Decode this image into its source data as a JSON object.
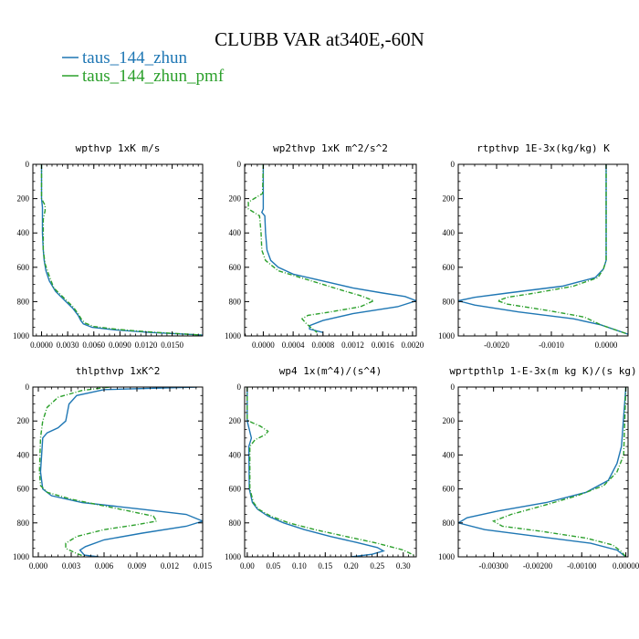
{
  "figure": {
    "title": "CLUBB VAR at340E,-60N",
    "legend": [
      {
        "label": "taus_144_zhun",
        "color": "#1f77b4",
        "dash": "solid"
      },
      {
        "label": "taus_144_zhun_pmf",
        "color": "#2ca02c",
        "dash": "dashdot"
      }
    ]
  },
  "chart_data": [
    {
      "type": "line",
      "title": "wpthvp  1xK m/s",
      "xlim": [
        -0.001,
        0.0185
      ],
      "ylim": [
        1000,
        0
      ],
      "xticks": [
        "0.0000",
        "0.0030",
        "0.0060",
        "0.0090",
        "0.0120",
        "0.0150"
      ],
      "xtick_values": [
        0.0,
        0.003,
        0.006,
        0.009,
        0.012,
        0.015
      ],
      "yticks": [
        "0",
        "200",
        "400",
        "600",
        "800",
        "1000"
      ],
      "ytick_values": [
        0,
        200,
        400,
        600,
        800,
        1000
      ],
      "series": [
        {
          "name": "taus_144_zhun",
          "color": "#1f77b4",
          "x": [
            0.0,
            0.0,
            0.0001,
            0.0001,
            0.0002,
            0.0003,
            0.0005,
            0.0009,
            0.0016,
            0.0026,
            0.0036,
            0.0042,
            0.0045,
            0.0048,
            0.0058,
            0.0085,
            0.0125,
            0.0165,
            0.0185
          ],
          "y": [
            0,
            200,
            250,
            400,
            500,
            560,
            620,
            680,
            740,
            790,
            840,
            880,
            910,
            930,
            950,
            965,
            980,
            990,
            995
          ]
        },
        {
          "name": "taus_144_zhun_pmf",
          "color": "#2ca02c",
          "x": [
            0.0,
            0.0,
            0.0004,
            0.0004,
            0.0002,
            0.0002,
            0.0004,
            0.0008,
            0.0014,
            0.0024,
            0.0036,
            0.0042,
            0.0046,
            0.005,
            0.006,
            0.0088,
            0.0128,
            0.0168,
            0.0185
          ],
          "y": [
            0,
            200,
            240,
            270,
            320,
            500,
            580,
            640,
            720,
            770,
            830,
            870,
            905,
            925,
            945,
            962,
            978,
            990,
            995
          ]
        }
      ]
    },
    {
      "type": "line",
      "title": "wp2thvp  1xK m^2/s^2",
      "xlim": [
        -0.00025,
        0.00205
      ],
      "ylim": [
        1000,
        0
      ],
      "xticks": [
        "0.0000",
        "0.0004",
        "0.0008",
        "0.0012",
        "0.0016",
        "0.0020"
      ],
      "xtick_values": [
        0.0,
        0.0004,
        0.0008,
        0.0012,
        0.0016,
        0.002
      ],
      "yticks": [
        "0",
        "200",
        "400",
        "600",
        "800",
        "1000"
      ],
      "ytick_values": [
        0,
        200,
        400,
        600,
        800,
        1000
      ],
      "series": [
        {
          "name": "taus_144_zhun",
          "color": "#1f77b4",
          "x": [
            0.0,
            0.0,
            -2e-05,
            2e-05,
            3e-05,
            5e-05,
            0.0001,
            0.0002,
            0.0004,
            0.0008,
            0.0012,
            0.0016,
            0.0019,
            0.00205,
            0.0018,
            0.0012,
            0.0008,
            0.00062,
            0.00062,
            0.0008
          ],
          "y": [
            0,
            260,
            280,
            300,
            400,
            500,
            560,
            600,
            640,
            680,
            720,
            750,
            770,
            795,
            830,
            870,
            910,
            940,
            960,
            980
          ]
        },
        {
          "name": "taus_144_zhun_pmf",
          "color": "#2ca02c",
          "x": [
            0.0,
            -1e-05,
            -0.0002,
            -0.0002,
            -5e-05,
            -3e-05,
            -2e-05,
            3e-05,
            0.0002,
            0.0005,
            0.0008,
            0.0011,
            0.0013,
            0.00148,
            0.0013,
            0.0009,
            0.0006,
            0.00052,
            0.00058,
            0.00072
          ],
          "y": [
            0,
            170,
            220,
            260,
            300,
            400,
            500,
            560,
            620,
            660,
            700,
            740,
            765,
            795,
            830,
            860,
            880,
            900,
            930,
            980
          ]
        }
      ]
    },
    {
      "type": "line",
      "title": "rtpthvp  1E-3x(kg/kg) K",
      "xlim": [
        -0.0027,
        0.0004
      ],
      "ylim": [
        1000,
        0
      ],
      "xticks": [
        "-0.0020",
        "-0.0010",
        "0.0000"
      ],
      "xtick_values": [
        -0.002,
        -0.001,
        0.0
      ],
      "yticks": [
        "0",
        "200",
        "400",
        "600",
        "800",
        "1000"
      ],
      "ytick_values": [
        0,
        200,
        400,
        600,
        800,
        1000
      ],
      "series": [
        {
          "name": "taus_144_zhun",
          "color": "#1f77b4",
          "x": [
            0.0,
            0.0,
            -5e-05,
            -0.0002,
            -0.0008,
            -0.0018,
            -0.0024,
            -0.0027,
            -0.0024,
            -0.0016,
            -0.0006,
            -0.0001,
            0.0004
          ],
          "y": [
            0,
            560,
            610,
            660,
            710,
            750,
            775,
            795,
            820,
            860,
            900,
            935,
            990
          ]
        },
        {
          "name": "taus_144_zhun_pmf",
          "color": "#2ca02c",
          "x": [
            0.0,
            0.0,
            -5e-05,
            -0.00015,
            -0.0006,
            -0.0013,
            -0.0018,
            -0.00198,
            -0.0018,
            -0.0011,
            -0.0004,
            -0.0001,
            0.0004
          ],
          "y": [
            0,
            560,
            610,
            660,
            710,
            750,
            775,
            795,
            815,
            850,
            890,
            935,
            990
          ]
        }
      ]
    },
    {
      "type": "line",
      "title": "thlpthvp  1xK^2",
      "xlim": [
        -0.0005,
        0.015
      ],
      "ylim": [
        1000,
        0
      ],
      "xticks": [
        "0.000",
        "0.003",
        "0.006",
        "0.009",
        "0.012",
        "0.015"
      ],
      "xtick_values": [
        0.0,
        0.003,
        0.006,
        0.009,
        0.012,
        0.015
      ],
      "yticks": [
        "0",
        "200",
        "400",
        "600",
        "800",
        "1000"
      ],
      "ytick_values": [
        0,
        200,
        400,
        600,
        800,
        1000
      ],
      "series": [
        {
          "name": "taus_144_zhun",
          "color": "#1f77b4",
          "x": [
            0.0145,
            0.006,
            0.0035,
            0.0028,
            0.0025,
            0.0018,
            0.0008,
            0.0004,
            0.0002,
            0.0004,
            0.0012,
            0.004,
            0.0095,
            0.0135,
            0.015,
            0.0135,
            0.0095,
            0.006,
            0.0043,
            0.0038,
            0.0042,
            0.0055
          ],
          "y": [
            0,
            15,
            50,
            100,
            200,
            240,
            270,
            300,
            500,
            600,
            640,
            680,
            720,
            750,
            790,
            820,
            860,
            900,
            940,
            960,
            990,
            1000
          ]
        },
        {
          "name": "taus_144_zhun_pmf",
          "color": "#2ca02c",
          "x": [
            0.0065,
            0.004,
            0.0018,
            0.0008,
            0.0004,
            0.0002,
            0.0001,
            0.0002,
            0.0008,
            0.003,
            0.0075,
            0.0105,
            0.0108,
            0.009,
            0.006,
            0.0035,
            0.0025,
            0.0025,
            0.0035,
            0.0043
          ],
          "y": [
            0,
            20,
            60,
            120,
            200,
            300,
            500,
            580,
            620,
            660,
            720,
            760,
            790,
            810,
            840,
            880,
            920,
            950,
            980,
            1000
          ]
        }
      ]
    },
    {
      "type": "line",
      "title": "wp4  1x(m^4)/(s^4)",
      "xlim": [
        -0.005,
        0.325
      ],
      "ylim": [
        1000,
        0
      ],
      "xticks": [
        "0.00",
        "0.05",
        "0.10",
        "0.15",
        "0.20",
        "0.25",
        "0.30"
      ],
      "xtick_values": [
        0.0,
        0.05,
        0.1,
        0.15,
        0.2,
        0.25,
        0.3
      ],
      "yticks": [
        "0",
        "200",
        "400",
        "600",
        "800",
        "1000"
      ],
      "ytick_values": [
        0,
        200,
        400,
        600,
        800,
        1000
      ],
      "series": [
        {
          "name": "taus_144_zhun",
          "color": "#1f77b4",
          "x": [
            0.0,
            0.0,
            0.004,
            0.008,
            0.003,
            0.004,
            0.01,
            0.02,
            0.04,
            0.07,
            0.11,
            0.16,
            0.21,
            0.25,
            0.262,
            0.24,
            0.2
          ],
          "y": [
            0,
            200,
            250,
            300,
            350,
            600,
            680,
            720,
            760,
            800,
            840,
            880,
            915,
            945,
            965,
            985,
            1000
          ]
        },
        {
          "name": "taus_144_zhun_pmf",
          "color": "#2ca02c",
          "x": [
            0.0,
            0.0,
            0.01,
            0.025,
            0.04,
            0.035,
            0.015,
            0.005,
            0.005,
            0.012,
            0.022,
            0.045,
            0.08,
            0.13,
            0.19,
            0.25,
            0.3,
            0.32
          ],
          "y": [
            0,
            195,
            210,
            230,
            260,
            280,
            310,
            350,
            600,
            680,
            720,
            760,
            800,
            840,
            880,
            920,
            960,
            990
          ]
        }
      ]
    },
    {
      "type": "line",
      "title": "wprtpthlp  1-E-3x(m kg K)/(s kg)",
      "xlim": [
        -0.0038,
        5e-05
      ],
      "ylim": [
        1000,
        0
      ],
      "xticks": [
        "-0.00300",
        "-0.00200",
        "-0.00100",
        "0.00000"
      ],
      "xtick_values": [
        -0.003,
        -0.002,
        -0.001,
        0.0
      ],
      "yticks": [
        "0",
        "200",
        "400",
        "600",
        "800",
        "1000"
      ],
      "ytick_values": [
        0,
        200,
        400,
        600,
        800,
        1000
      ],
      "series": [
        {
          "name": "taus_144_zhun",
          "color": "#1f77b4",
          "x": [
            0.0,
            -0.0001,
            -0.0002,
            -0.0004,
            -0.0009,
            -0.0018,
            -0.0029,
            -0.0036,
            -0.0038,
            -0.0032,
            -0.002,
            -0.0008,
            -0.0002,
            0.0
          ],
          "y": [
            0,
            350,
            450,
            550,
            620,
            680,
            730,
            770,
            800,
            840,
            880,
            920,
            960,
            1000
          ]
        },
        {
          "name": "taus_144_zhun_pmf",
          "color": "#2ca02c",
          "x": [
            0.0,
            -5e-05,
            -0.0002,
            -0.0005,
            -0.0011,
            -0.0019,
            -0.0026,
            -0.003,
            -0.0028,
            -0.0019,
            -0.0009,
            -0.0003,
            -0.0001,
            0.0
          ],
          "y": [
            0,
            400,
            500,
            580,
            640,
            700,
            750,
            790,
            820,
            850,
            890,
            930,
            970,
            1000
          ]
        }
      ]
    }
  ]
}
